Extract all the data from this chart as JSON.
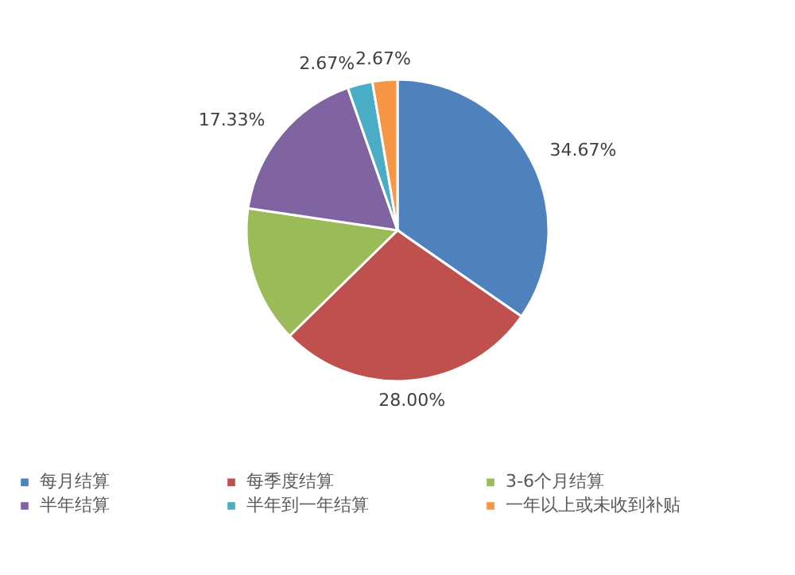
{
  "chart_data": {
    "type": "pie",
    "categories": [
      "每月结算",
      "每季度结算",
      "3-6个月结算",
      "半年结算",
      "半年到一年结算",
      "一年以上或未收到补贴"
    ],
    "values": [
      34.67,
      28.0,
      14.67,
      17.33,
      2.67,
      2.67
    ],
    "colors": [
      "#4f81bd",
      "#c0504d",
      "#9bbb59",
      "#8064a2",
      "#4bacc6",
      "#f79646"
    ],
    "value_labels": [
      "34.67%",
      "28.00%",
      null,
      "17.33%",
      "2.67%",
      "2.67%"
    ],
    "legend": "bottom"
  }
}
